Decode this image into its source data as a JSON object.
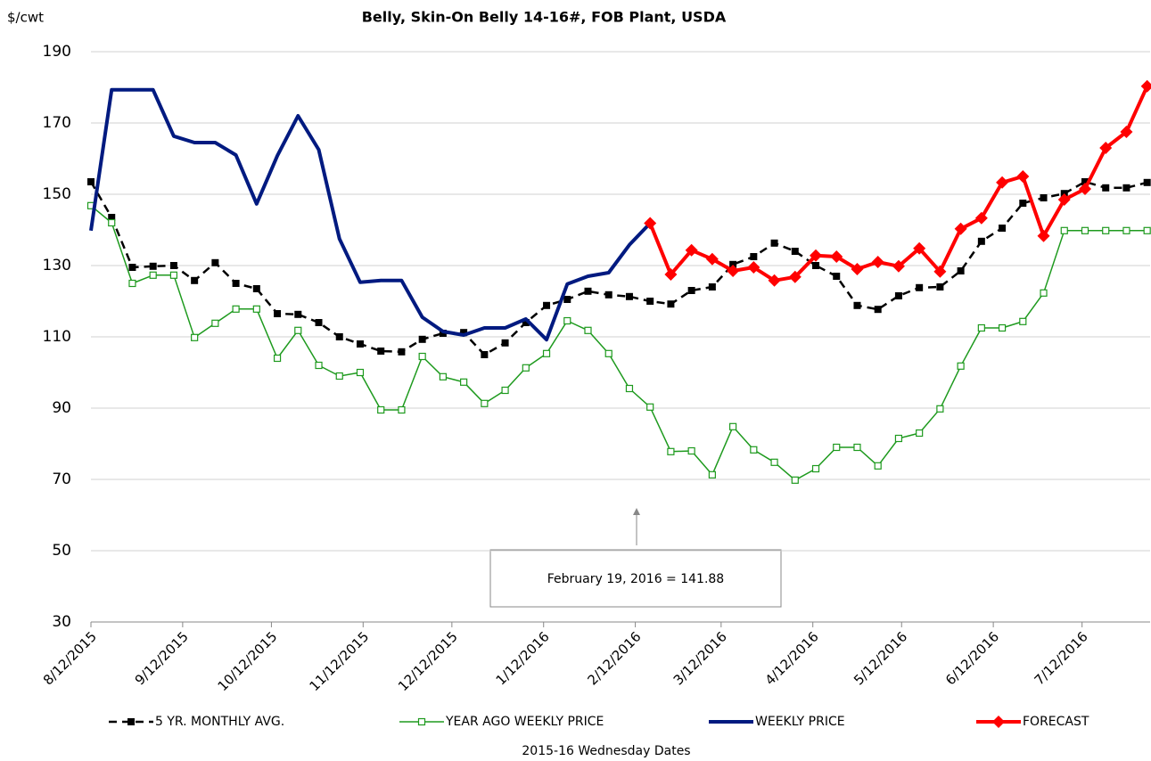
{
  "chart_data": {
    "type": "line",
    "title": "Belly, Skin-On Belly 14-16#, FOB Plant, USDA",
    "y_label": "$/cwt",
    "x_label": "2015-16 Wednesday Dates",
    "annotation": "February 19, 2016  = 141.88",
    "ylim": [
      30,
      190
    ],
    "yticks": [
      30,
      50,
      70,
      90,
      110,
      130,
      150,
      170,
      190
    ],
    "xlim": [
      "8/12/2015",
      "8/4/2016"
    ],
    "xticks": [
      "8/12/2015",
      "9/12/2015",
      "10/12/2015",
      "11/12/2015",
      "12/12/2015",
      "1/12/2016",
      "2/12/2016",
      "3/12/2016",
      "4/12/2016",
      "5/12/2016",
      "6/12/2016",
      "7/12/2016"
    ],
    "grid": true,
    "x": [
      "8/12/2015",
      "8/19/2015",
      "8/26/2015",
      "9/2/2015",
      "9/9/2015",
      "9/16/2015",
      "9/23/2015",
      "9/30/2015",
      "10/7/2015",
      "10/14/2015",
      "10/21/2015",
      "10/28/2015",
      "11/4/2015",
      "11/11/2015",
      "11/18/2015",
      "11/25/2015",
      "12/2/2015",
      "12/9/2015",
      "12/16/2015",
      "12/23/2015",
      "12/30/2015",
      "1/6/2016",
      "1/13/2016",
      "1/20/2016",
      "1/27/2016",
      "2/3/2016",
      "2/10/2016",
      "2/17/2016",
      "2/24/2016",
      "3/2/2016",
      "3/9/2016",
      "3/16/2016",
      "3/23/2016",
      "3/30/2016",
      "4/6/2016",
      "4/13/2016",
      "4/20/2016",
      "4/27/2016",
      "5/4/2016",
      "5/11/2016",
      "5/18/2016",
      "5/25/2016",
      "6/1/2016",
      "6/8/2016",
      "6/15/2016",
      "6/22/2016",
      "6/29/2016",
      "7/6/2016",
      "7/13/2016",
      "7/20/2016",
      "7/27/2016",
      "8/3/2016"
    ],
    "series": [
      {
        "name": "5 YR. MONTHLY AVG.",
        "color": "#000000",
        "marker": "filled-square",
        "dash": true,
        "line_width": 2.5,
        "values": [
          153.5,
          143.5,
          129.5,
          129.8,
          130,
          125.8,
          130.8,
          125,
          123.5,
          116.5,
          116.3,
          114,
          110,
          108,
          106,
          105.8,
          109.3,
          111,
          111.2,
          105,
          108.3,
          114,
          118.8,
          120.5,
          122.8,
          121.8,
          121.3,
          120,
          119.2,
          123,
          124,
          130.3,
          132.5,
          136.3,
          134,
          130,
          127,
          118.8,
          117.7,
          121.5,
          123.8,
          124,
          128.5,
          136.8,
          140.5,
          147.5,
          149,
          150.2,
          153.5,
          151.8,
          151.8,
          153.3
        ]
      },
      {
        "name": "YEAR AGO WEEKLY PRICE",
        "color": "#1e9a1e",
        "marker": "open-square",
        "dash": false,
        "line_width": 1.5,
        "values": [
          146.8,
          142,
          125,
          127.3,
          127.3,
          109.8,
          113.8,
          117.8,
          117.8,
          104,
          111.8,
          102,
          99,
          100,
          89.5,
          89.5,
          104.5,
          98.8,
          97.3,
          91.3,
          95,
          101.3,
          105.3,
          114.5,
          111.8,
          105.3,
          95.5,
          90.3,
          77.8,
          78,
          71.3,
          84.8,
          78.3,
          74.8,
          69.8,
          73,
          79,
          79,
          73.8,
          81.5,
          83,
          89.8,
          101.8,
          112.5,
          112.5,
          114.3,
          122.3,
          139.8,
          139.8,
          139.8,
          139.8,
          139.8
        ]
      },
      {
        "name": "WEEKLY PRICE",
        "color": "#001a80",
        "marker": "none",
        "dash": false,
        "line_width": 4,
        "values": [
          139.8,
          179.3,
          179.3,
          179.3,
          166.3,
          164.5,
          164.5,
          161,
          147.3,
          160.8,
          172,
          162.5,
          137.5,
          125.3,
          125.8,
          125.8,
          115.5,
          111.5,
          110.5,
          112.5,
          112.5,
          115,
          109.2,
          124.8,
          127,
          128,
          135.8,
          141.88,
          null,
          null,
          null,
          null,
          null,
          null,
          null,
          null,
          null,
          null,
          null,
          null,
          null,
          null,
          null,
          null,
          null,
          null,
          null,
          null,
          null,
          null,
          null,
          null
        ]
      },
      {
        "name": "FORECAST",
        "color": "#ff0000",
        "marker": "diamond",
        "dash": false,
        "line_width": 4,
        "values": [
          null,
          null,
          null,
          null,
          null,
          null,
          null,
          null,
          null,
          null,
          null,
          null,
          null,
          null,
          null,
          null,
          null,
          null,
          null,
          null,
          null,
          null,
          null,
          null,
          null,
          null,
          null,
          141.88,
          127.5,
          134.3,
          131.8,
          128.5,
          129.5,
          125.8,
          126.8,
          132.8,
          132.5,
          129,
          131,
          129.8,
          134.8,
          128.3,
          140.3,
          143.3,
          153.3,
          155,
          138.3,
          148.5,
          151.5,
          163,
          167.5,
          180.3
        ]
      }
    ]
  }
}
